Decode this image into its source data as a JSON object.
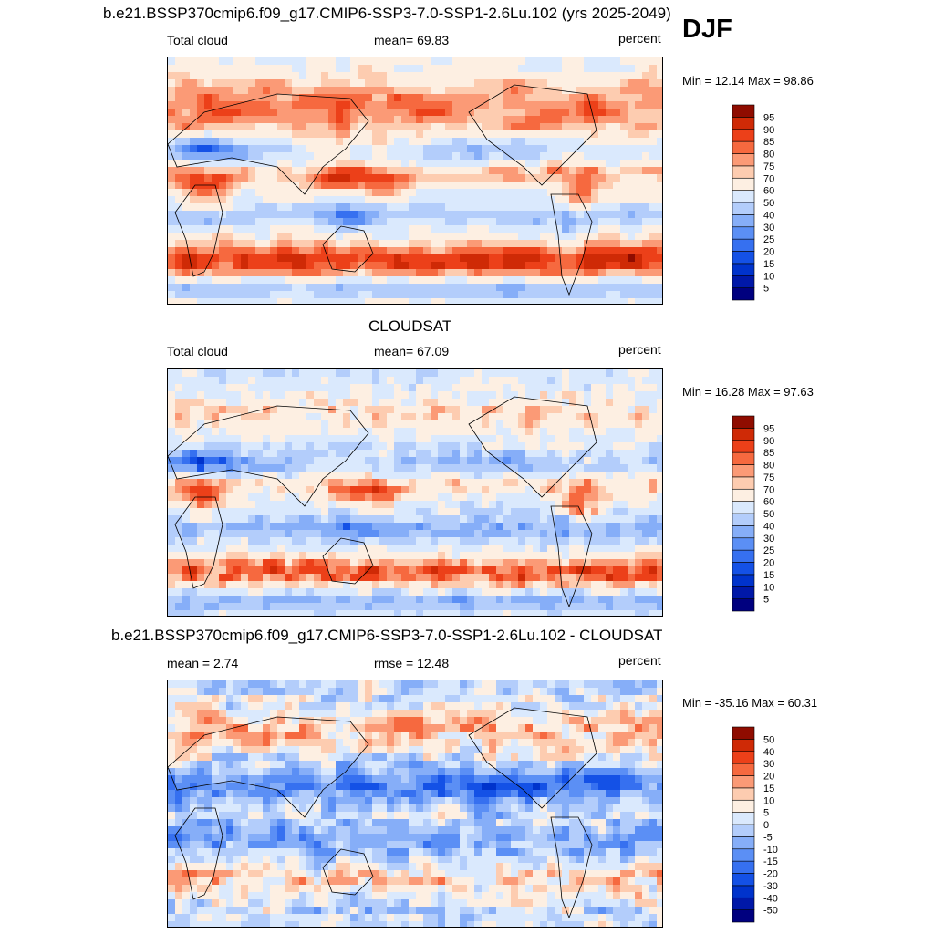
{
  "season": "DJF",
  "panels": [
    {
      "title": "b.e21.BSSP370cmip6.f09_g17.CMIP6-SSP3-7.0-SSP1-2.6Lu.102 (yrs 2025-2049)",
      "left_label": "Total cloud",
      "center_label": "mean=  69.83",
      "right_label": "percent",
      "minmax": "Min =  12.14 Max =  98.86"
    },
    {
      "title": "CLOUDSAT",
      "left_label": "Total cloud",
      "center_label": "mean=  67.09",
      "right_label": "percent",
      "minmax": "Min =  16.28 Max =  97.63"
    },
    {
      "title": "b.e21.BSSP370cmip6.f09_g17.CMIP6-SSP3-7.0-SSP1-2.6Lu.102 - CLOUDSAT",
      "left_label": "mean =   2.74",
      "center_label": "rmse =  12.48",
      "right_label": "percent",
      "minmax": "Min = -35.16 Max =  60.31"
    }
  ],
  "chart_data": [
    {
      "type": "heatmap",
      "title": "b.e21.BSSP370cmip6.f09_g17.CMIP6-SSP3-7.0-SSP1-2.6Lu.102 (yrs 2025-2049)",
      "variable": "Total cloud",
      "units": "percent",
      "mean": 69.83,
      "min": 12.14,
      "max": 98.86,
      "colorbar_levels": [
        5,
        10,
        15,
        20,
        25,
        30,
        40,
        50,
        60,
        70,
        75,
        80,
        85,
        90,
        95
      ],
      "colorbar_colors": [
        "#00007f",
        "#0018a8",
        "#0033cc",
        "#1451e6",
        "#3670f0",
        "#5b8ff5",
        "#86aef8",
        "#b3cdfb",
        "#dae9fd",
        "#fdefe2",
        "#fdccb0",
        "#fb9a76",
        "#f6693f",
        "#ec4019",
        "#cf2a06",
        "#8f0c00"
      ]
    },
    {
      "type": "heatmap",
      "title": "CLOUDSAT",
      "variable": "Total cloud",
      "units": "percent",
      "mean": 67.09,
      "min": 16.28,
      "max": 97.63,
      "colorbar_levels": [
        5,
        10,
        15,
        20,
        25,
        30,
        40,
        50,
        60,
        70,
        75,
        80,
        85,
        90,
        95
      ],
      "colorbar_colors": [
        "#00007f",
        "#0018a8",
        "#0033cc",
        "#1451e6",
        "#3670f0",
        "#5b8ff5",
        "#86aef8",
        "#b3cdfb",
        "#dae9fd",
        "#fdefe2",
        "#fdccb0",
        "#fb9a76",
        "#f6693f",
        "#ec4019",
        "#cf2a06",
        "#8f0c00"
      ]
    },
    {
      "type": "heatmap",
      "title": "b.e21.BSSP370cmip6.f09_g17.CMIP6-SSP3-7.0-SSP1-2.6Lu.102 - CLOUDSAT",
      "variable": "Total cloud",
      "units": "percent",
      "mean": 2.74,
      "rmse": 12.48,
      "min": -35.16,
      "max": 60.31,
      "colorbar_levels": [
        -50,
        -40,
        -30,
        -20,
        -15,
        -10,
        -5,
        0,
        5,
        10,
        15,
        20,
        30,
        40,
        50
      ],
      "colorbar_colors": [
        "#00007f",
        "#0018a8",
        "#0033cc",
        "#1451e6",
        "#3670f0",
        "#5b8ff5",
        "#86aef8",
        "#b3cdfb",
        "#dae9fd",
        "#fdefe2",
        "#fdccb0",
        "#fb9a76",
        "#f6693f",
        "#ec4019",
        "#cf2a06",
        "#8f0c00"
      ]
    }
  ]
}
